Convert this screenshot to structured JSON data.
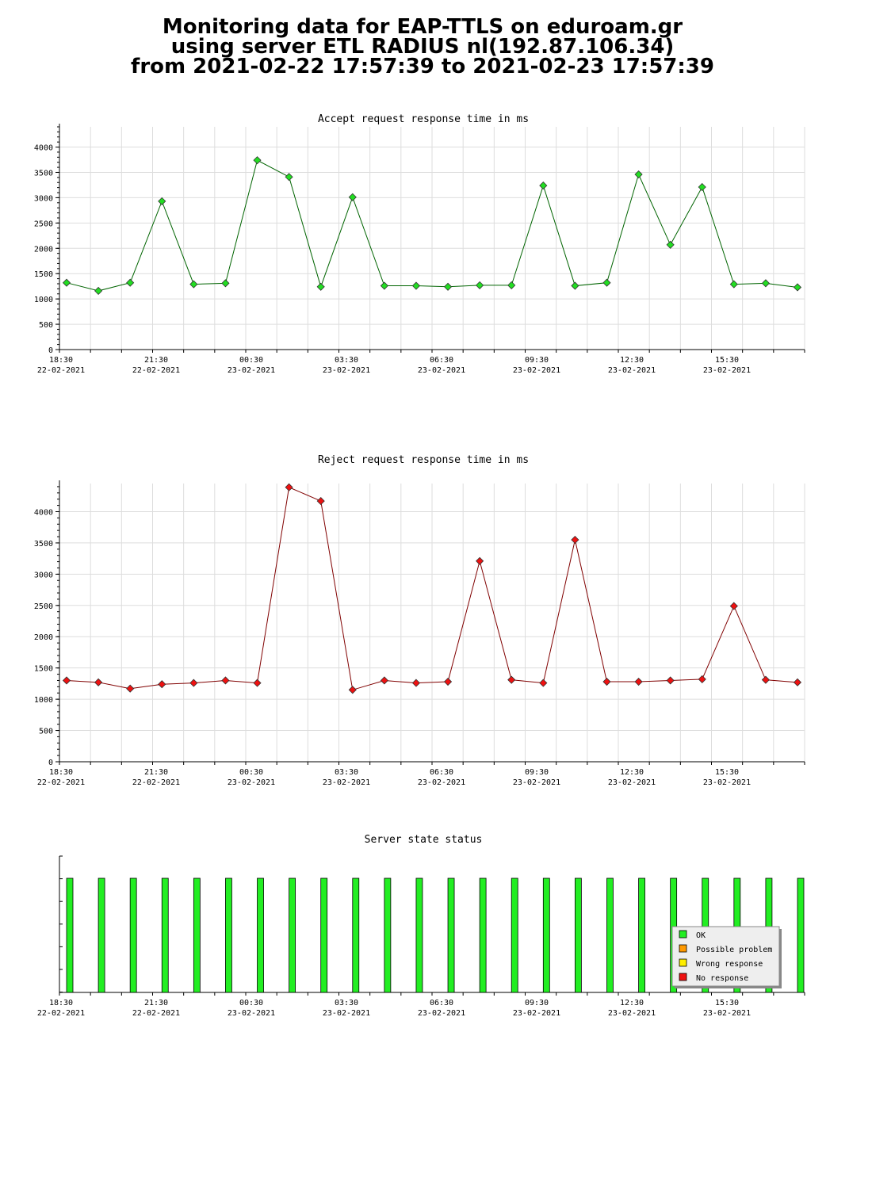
{
  "header": {
    "line1": "Monitoring data for EAP-TTLS on eduroam.gr",
    "line2": "using server ETL RADIUS nl(192.87.106.34)",
    "line3": "from 2021-02-22 17:57:39 to 2021-02-23 17:57:39"
  },
  "x_axis": {
    "ticks": [
      {
        "time": "18:30",
        "date": "22-02-2021"
      },
      {
        "time": "21:30",
        "date": "22-02-2021"
      },
      {
        "time": "00:30",
        "date": "23-02-2021"
      },
      {
        "time": "03:30",
        "date": "23-02-2021"
      },
      {
        "time": "06:30",
        "date": "23-02-2021"
      },
      {
        "time": "09:30",
        "date": "23-02-2021"
      },
      {
        "time": "12:30",
        "date": "23-02-2021"
      },
      {
        "time": "15:30",
        "date": "23-02-2021"
      }
    ]
  },
  "colors": {
    "accept_line": "#006400",
    "accept_marker": "#22dd22",
    "reject_line": "#800000",
    "reject_marker": "#ee1111",
    "ok": "#22ee22",
    "possible_problem": "#ff9900",
    "wrong_response": "#ffee00",
    "no_response": "#ee1111"
  },
  "chart_data": [
    {
      "type": "line",
      "title": "Accept request response time in ms",
      "x": [
        "18:30",
        "19:30",
        "20:30",
        "21:30",
        "22:30",
        "23:30",
        "00:30",
        "01:30",
        "02:30",
        "03:30",
        "04:30",
        "05:30",
        "06:30",
        "07:30",
        "08:30",
        "09:30",
        "10:30",
        "11:30",
        "12:30",
        "13:30",
        "14:30",
        "15:30",
        "16:30",
        "17:30"
      ],
      "values": [
        1320,
        1160,
        1320,
        2930,
        1290,
        1310,
        3740,
        3410,
        1240,
        3010,
        1260,
        1260,
        1240,
        1270,
        1270,
        3240,
        1260,
        1320,
        3460,
        2070,
        3210,
        1290,
        1310,
        1230
      ],
      "ylim": [
        0,
        4400
      ],
      "yticks": [
        0,
        500,
        1000,
        1500,
        2000,
        2500,
        3000,
        3500,
        4000
      ],
      "grid": true,
      "xlabel": "",
      "ylabel": ""
    },
    {
      "type": "line",
      "title": "Reject request response time in ms",
      "x": [
        "18:30",
        "19:30",
        "20:30",
        "21:30",
        "22:30",
        "23:30",
        "00:30",
        "01:30",
        "02:30",
        "03:30",
        "04:30",
        "05:30",
        "06:30",
        "07:30",
        "08:30",
        "09:30",
        "10:30",
        "11:30",
        "12:30",
        "13:30",
        "14:30",
        "15:30",
        "16:30",
        "17:30"
      ],
      "values": [
        1300,
        1270,
        1170,
        1240,
        1260,
        1300,
        1260,
        4390,
        4170,
        1150,
        1300,
        1260,
        1280,
        3210,
        1310,
        1260,
        3550,
        1280,
        1280,
        1300,
        1320,
        2490,
        1310,
        1270
      ],
      "ylim": [
        0,
        4450
      ],
      "yticks": [
        0,
        500,
        1000,
        1500,
        2000,
        2500,
        3000,
        3500,
        4000
      ],
      "grid": true,
      "xlabel": "",
      "ylabel": ""
    },
    {
      "type": "bar",
      "title": "Server state status",
      "x": [
        "18:30",
        "19:30",
        "20:30",
        "21:30",
        "22:30",
        "23:30",
        "00:30",
        "01:30",
        "02:30",
        "03:30",
        "04:30",
        "05:30",
        "06:30",
        "07:30",
        "08:30",
        "09:30",
        "10:30",
        "11:30",
        "12:30",
        "13:30",
        "14:30",
        "15:30",
        "16:30",
        "17:30"
      ],
      "states": [
        "OK",
        "OK",
        "OK",
        "OK",
        "OK",
        "OK",
        "OK",
        "OK",
        "OK",
        "OK",
        "OK",
        "OK",
        "OK",
        "OK",
        "OK",
        "OK",
        "OK",
        "OK",
        "OK",
        "OK",
        "OK",
        "OK",
        "OK",
        "OK"
      ],
      "legend": {
        "position": "bottom-right",
        "entries": [
          "OK",
          "Possible problem",
          "Wrong response",
          "No response"
        ]
      }
    }
  ]
}
